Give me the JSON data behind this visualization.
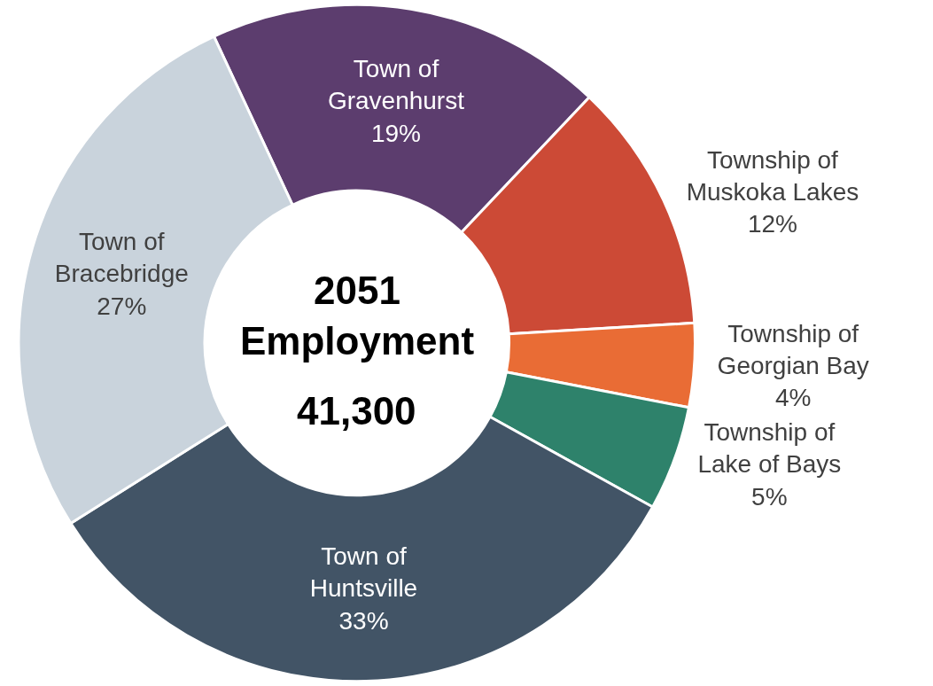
{
  "chart_data": {
    "type": "donut",
    "categories": [
      "Town of\nGravenhurst",
      "Township of\nMuskoka Lakes",
      "Township of\nGeorgian Bay",
      "Township of\nLake of Bays",
      "Town of\nHuntsville",
      "Town of\nBracebridge"
    ],
    "values": [
      19,
      12,
      4,
      5,
      33,
      27
    ],
    "colors": [
      "#5c3d6e",
      "#cc4a36",
      "#e96c35",
      "#2e826b",
      "#425466",
      "#c9d3dc"
    ],
    "value_labels": [
      "19%",
      "12%",
      "4%",
      "5%",
      "33%",
      "27%"
    ],
    "annotations": [
      "2051\nEmployment",
      "41,300"
    ],
    "legend": false
  }
}
